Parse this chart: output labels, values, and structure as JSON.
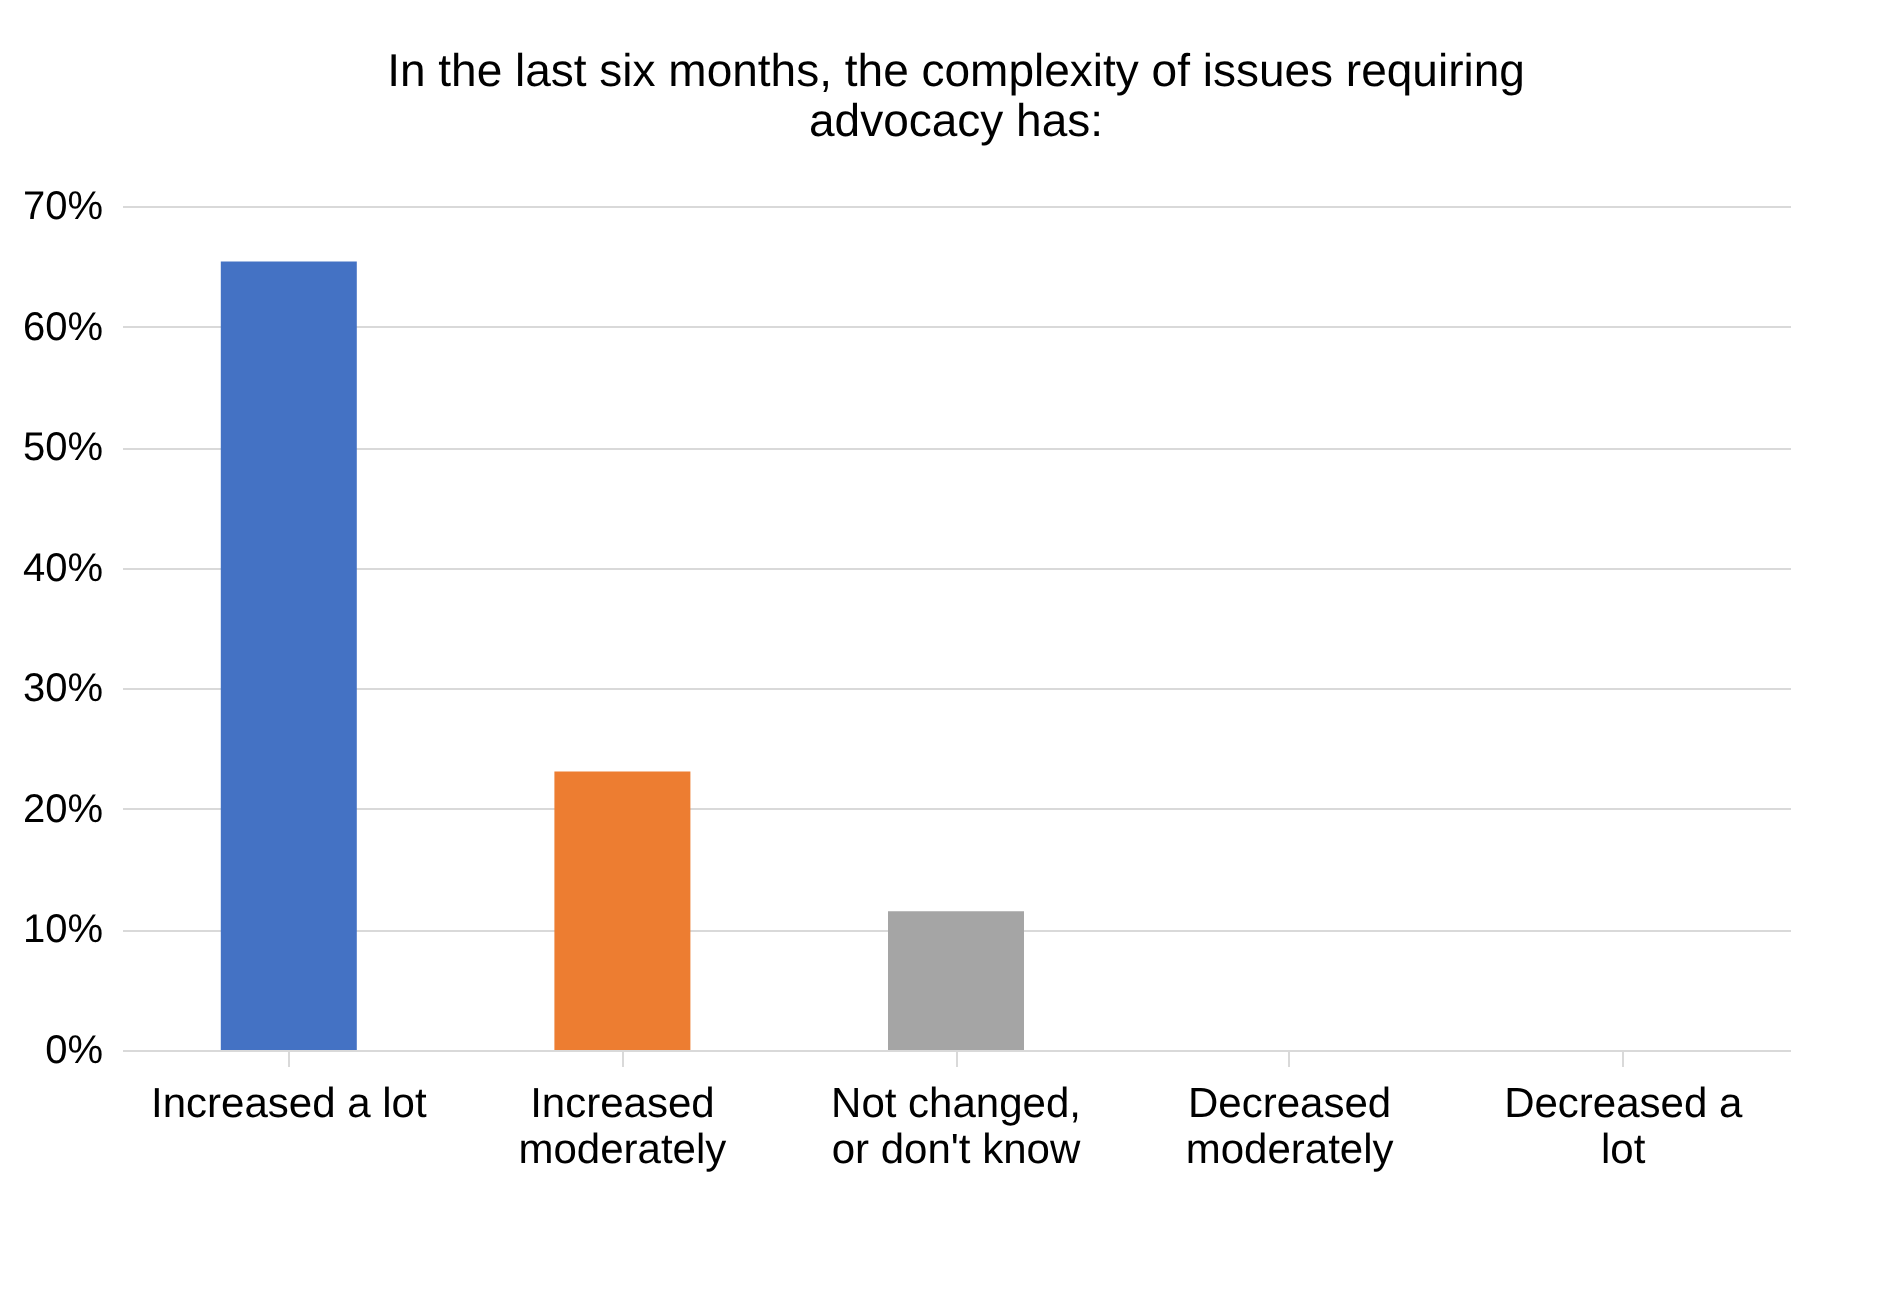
{
  "chart_data": {
    "type": "bar",
    "title": "In the last six months, the complexity of issues requiring advocacy has:",
    "categories": [
      "Increased a lot",
      "Increased moderately",
      "Not changed, or don't know",
      "Decreased moderately",
      "Decreased a lot"
    ],
    "values": [
      65.4,
      23.1,
      11.5,
      0,
      0
    ],
    "colors": [
      "#4472c4",
      "#ed7d31",
      "#a5a5a5",
      "#ffc000",
      "#5b9bd5"
    ],
    "ylim": [
      0,
      70
    ],
    "yticks": [
      {
        "value": 0,
        "label": "0%"
      },
      {
        "value": 10,
        "label": "10%"
      },
      {
        "value": 20,
        "label": "20%"
      },
      {
        "value": 30,
        "label": "30%"
      },
      {
        "value": 40,
        "label": "40%"
      },
      {
        "value": 50,
        "label": "50%"
      },
      {
        "value": 60,
        "label": "60%"
      },
      {
        "value": 70,
        "label": "70%"
      }
    ],
    "grid": "y"
  }
}
